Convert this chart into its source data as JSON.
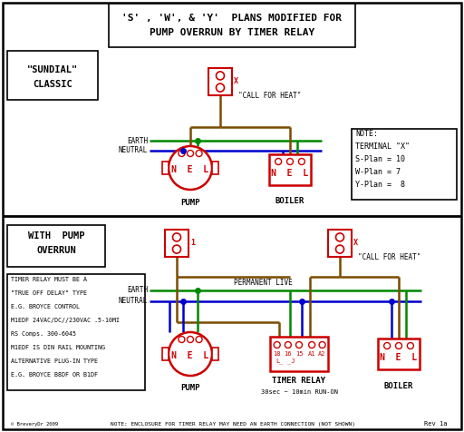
{
  "title_line1": "'S' , 'W', & 'Y'  PLANS MODIFIED FOR",
  "title_line2": "PUMP OVERRUN BY TIMER RELAY",
  "bg_color": "#ffffff",
  "red": "#cc0000",
  "green": "#008800",
  "blue": "#0000cc",
  "brown": "#7B4B00",
  "note_text": [
    "NOTE:",
    "TERMINAL \"X\"",
    "S-Plan = 10",
    "W-Plan = 7",
    "Y-Plan =  8"
  ],
  "timer_note": [
    "TIMER RELAY MUST BE A",
    "\"TRUE OFF DELAY\" TYPE",
    "E.G. BROYCE CONTROL",
    "M1EDF 24VAC/DC//230VAC .5-10MI",
    "RS Comps. 300-6045",
    "M1EDF IS DIN RAIL MOUNTING",
    "ALTERNATIVE PLUG-IN TYPE",
    "E.G. BROYCE B8DF OR B1DF"
  ],
  "bottom_note": "NOTE: ENCLOSURE FOR TIMER RELAY MAY NEED AN EARTH CONNECTION (NOT SHOWN)",
  "rev_text": "Rev 1a",
  "copyright": "© BreveryDr 2009"
}
